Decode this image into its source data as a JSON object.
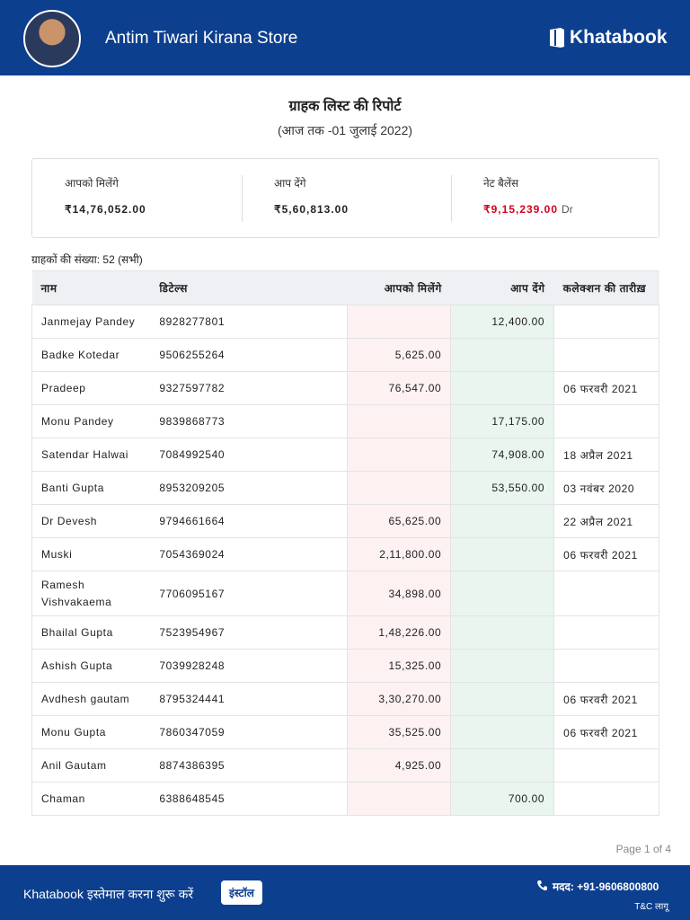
{
  "header": {
    "store_name": "Antim Tiwari Kirana Store",
    "brand": "Khatabook"
  },
  "report": {
    "title": "ग्राहक लिस्ट की रिपोर्ट",
    "subtitle": "(आज तक -01 जुलाई 2022)"
  },
  "summary": [
    {
      "label": "आपको मिलेंगे",
      "amount": "₹14,76,052.00"
    },
    {
      "label": "आप देंगे",
      "amount": "₹5,60,813.00"
    },
    {
      "label": "नेट बैलेंस",
      "amount": "₹9,15,239.00",
      "suffix": "Dr"
    }
  ],
  "count": "ग्राहकों की संख्या: 52 (सभी)",
  "table": {
    "headers": [
      "नाम",
      "डिटेल्स",
      "आपको मिलेंगे",
      "आप देंगे",
      "कलेक्शन की तारीख़"
    ],
    "rows": [
      {
        "name": "Janmejay Pandey",
        "phone": "8928277801",
        "give": "12,400.00"
      },
      {
        "name": "Badke Kotedar",
        "phone": "9506255264",
        "get": "5,625.00"
      },
      {
        "name": "Pradeep",
        "phone": "9327597782",
        "get": "76,547.00",
        "date": "06 फरवरी 2021"
      },
      {
        "name": "Monu Pandey",
        "phone": "9839868773",
        "give": "17,175.00"
      },
      {
        "name": "Satendar Halwai",
        "phone": "7084992540",
        "give": "74,908.00",
        "date": "18 अप्रैल 2021"
      },
      {
        "name": "Banti Gupta",
        "phone": "8953209205",
        "give": "53,550.00",
        "date": "03 नवंबर 2020"
      },
      {
        "name": "Dr Devesh",
        "phone": "9794661664",
        "get": "65,625.00",
        "date": "22 अप्रैल 2021"
      },
      {
        "name": "Muski",
        "phone": "7054369024",
        "get": "2,11,800.00",
        "date": "06 फरवरी 2021"
      },
      {
        "name": "Ramesh Vishvakaema",
        "phone": "7706095167",
        "get": "34,898.00"
      },
      {
        "name": "Bhailal Gupta",
        "phone": "7523954967",
        "get": "1,48,226.00"
      },
      {
        "name": "Ashish Gupta",
        "phone": "7039928248",
        "get": "15,325.00"
      },
      {
        "name": "Avdhesh gautam",
        "phone": "8795324441",
        "get": "3,30,270.00",
        "date": "06 फरवरी 2021"
      },
      {
        "name": "Monu Gupta",
        "phone": "7860347059",
        "get": "35,525.00",
        "date": "06 फरवरी 2021"
      },
      {
        "name": "Anil Gautam",
        "phone": "8874386395",
        "get": "4,925.00"
      },
      {
        "name": "Chaman",
        "phone": "6388648545",
        "give": "700.00"
      }
    ]
  },
  "page": "Page 1 of 4",
  "footer": {
    "cta": "Khatabook इस्तेमाल करना शुरू करें",
    "button": "इंस्टॉल",
    "help": "मदद: +91-9606800800",
    "terms": "T&C लागू"
  }
}
